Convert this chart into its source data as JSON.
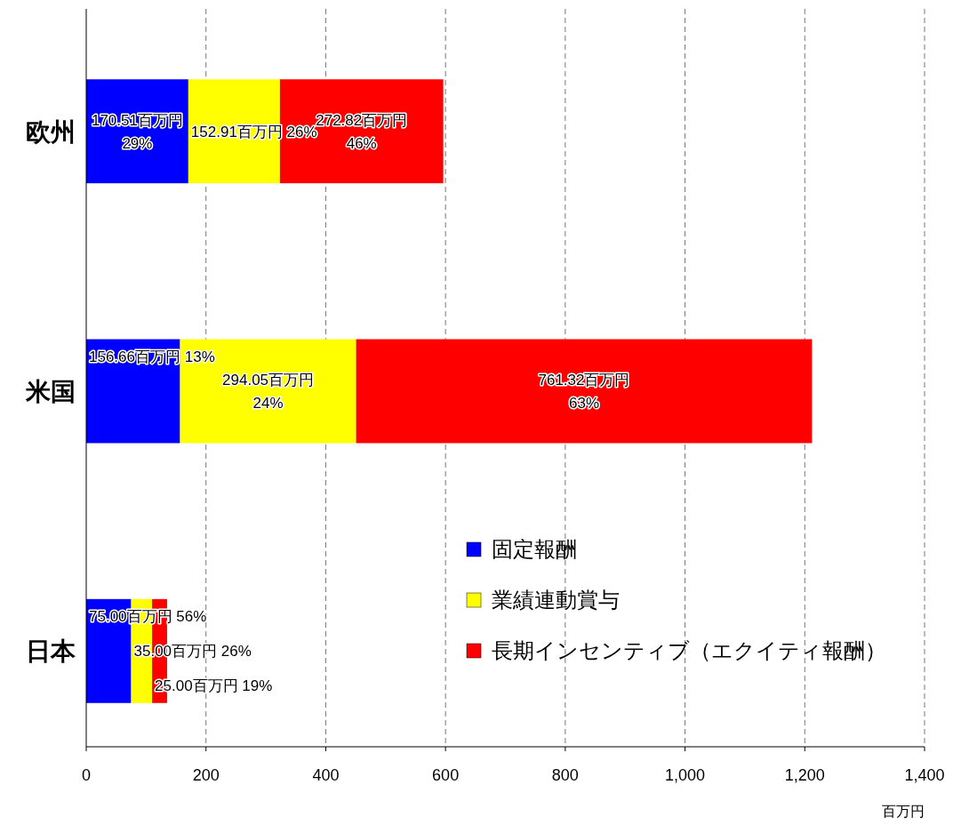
{
  "chart_data": {
    "type": "bar",
    "orientation": "horizontal",
    "stacked": true,
    "categories": [
      "欧州",
      "米国",
      "日本"
    ],
    "series": [
      {
        "name": "固定報酬",
        "color": "#0000ff",
        "values": [
          170.51,
          156.66,
          75.0
        ],
        "value_labels": [
          "170.51百万円\n29%",
          "156.66百万円\n13%",
          "75.00百万円\n56%"
        ]
      },
      {
        "name": "業績連動賞与",
        "color": "#ffff00",
        "values": [
          152.91,
          294.05,
          35.0
        ],
        "value_labels": [
          "152.91百万円\n26%",
          "294.05百万円\n24%",
          "35.00百万円\n26%"
        ]
      },
      {
        "name": "長期インセンティブ（エクイティ報酬）",
        "color": "#ff0000",
        "values": [
          272.82,
          761.32,
          25.0
        ],
        "value_labels": [
          "272.82百万円\n46%",
          "761.32百万円\n63%",
          "25.00百万円\n19%"
        ]
      }
    ],
    "xlim": [
      0,
      1400
    ],
    "xticks": [
      0,
      200,
      400,
      600,
      800,
      {
        "value": 1000,
        "label": "1,000"
      },
      {
        "value": 1200,
        "label": "1,200"
      },
      {
        "value": 1400,
        "label": "1,400"
      }
    ],
    "xlabel": "百万円",
    "grid": "x",
    "legend": "bottom right"
  }
}
